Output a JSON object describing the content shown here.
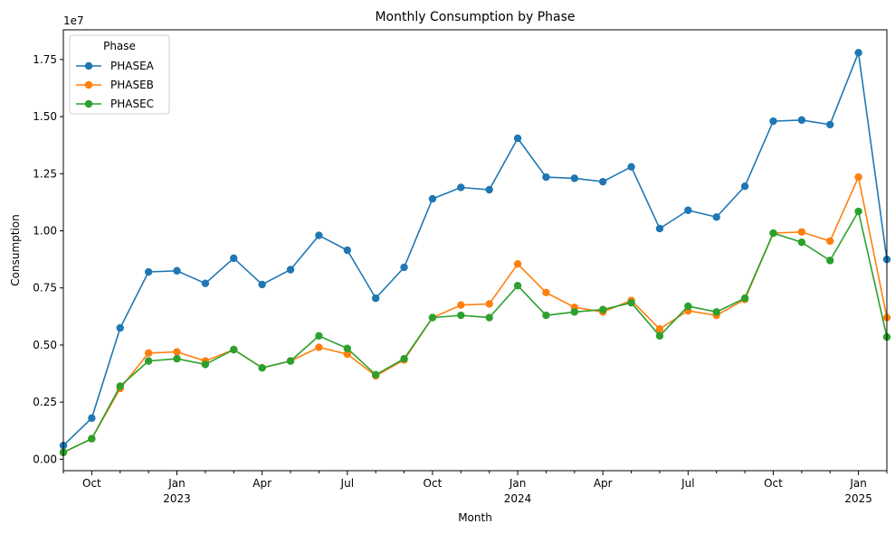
{
  "chart_data": {
    "type": "line",
    "title": "Monthly Consumption by Phase",
    "xlabel": "Month",
    "ylabel": "Consumption",
    "y_scale_label": "1e7",
    "y_multiplier": 10000000,
    "ylim": [
      -0.05,
      1.88
    ],
    "y_ticks": [
      "0.00",
      "0.25",
      "0.50",
      "0.75",
      "1.00",
      "1.25",
      "1.50",
      "1.75"
    ],
    "x": [
      "2022-09",
      "2022-10",
      "2022-11",
      "2022-12",
      "2023-01",
      "2023-02",
      "2023-03",
      "2023-04",
      "2023-05",
      "2023-06",
      "2023-07",
      "2023-08",
      "2023-09",
      "2023-10",
      "2023-11",
      "2023-12",
      "2024-01",
      "2024-02",
      "2024-03",
      "2024-04",
      "2024-05",
      "2024-06",
      "2024-07",
      "2024-08",
      "2024-09",
      "2024-10",
      "2024-11",
      "2024-12",
      "2025-01",
      "2025-02"
    ],
    "x_ticks": [
      {
        "month": "2022-10",
        "label": "Oct",
        "year": ""
      },
      {
        "month": "2023-01",
        "label": "Jan",
        "year": "2023"
      },
      {
        "month": "2023-04",
        "label": "Apr",
        "year": ""
      },
      {
        "month": "2023-07",
        "label": "Jul",
        "year": ""
      },
      {
        "month": "2023-10",
        "label": "Oct",
        "year": ""
      },
      {
        "month": "2024-01",
        "label": "Jan",
        "year": "2024"
      },
      {
        "month": "2024-04",
        "label": "Apr",
        "year": ""
      },
      {
        "month": "2024-07",
        "label": "Jul",
        "year": ""
      },
      {
        "month": "2024-10",
        "label": "Oct",
        "year": ""
      },
      {
        "month": "2025-01",
        "label": "Jan",
        "year": "2025"
      }
    ],
    "legend": {
      "title": "Phase",
      "position": "upper-left"
    },
    "grid": false,
    "series": [
      {
        "name": "PHASEA",
        "color": "#1f77b4",
        "values": [
          0.06,
          0.18,
          0.575,
          0.82,
          0.825,
          0.77,
          0.88,
          0.765,
          0.83,
          0.98,
          0.915,
          0.705,
          0.84,
          1.14,
          1.19,
          1.18,
          1.405,
          1.235,
          1.23,
          1.215,
          1.28,
          1.01,
          1.09,
          1.06,
          1.195,
          1.48,
          1.485,
          1.465,
          1.78,
          0.875
        ]
      },
      {
        "name": "PHASEB",
        "color": "#ff7f0e",
        "values": [
          0.03,
          0.09,
          0.31,
          0.465,
          0.47,
          0.43,
          0.48,
          0.4,
          0.43,
          0.49,
          0.46,
          0.365,
          0.435,
          0.62,
          0.675,
          0.68,
          0.855,
          0.73,
          0.665,
          0.645,
          0.695,
          0.57,
          0.65,
          0.63,
          0.7,
          0.99,
          0.995,
          0.955,
          1.235,
          0.62
        ]
      },
      {
        "name": "PHASEC",
        "color": "#2ca02c",
        "values": [
          0.03,
          0.09,
          0.32,
          0.43,
          0.44,
          0.415,
          0.48,
          0.4,
          0.43,
          0.54,
          0.485,
          0.37,
          0.44,
          0.62,
          0.63,
          0.62,
          0.76,
          0.63,
          0.645,
          0.655,
          0.685,
          0.54,
          0.67,
          0.645,
          0.705,
          0.99,
          0.95,
          0.87,
          1.085,
          0.535
        ]
      }
    ]
  }
}
